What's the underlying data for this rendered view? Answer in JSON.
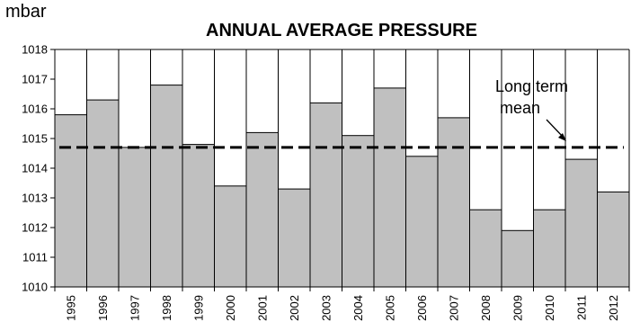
{
  "chart_data": {
    "type": "bar",
    "title": "ANNUAL AVERAGE PRESSURE",
    "unit_label": "mbar",
    "xlabel": "",
    "ylabel": "",
    "categories": [
      "1995",
      "1996",
      "1997",
      "1998",
      "1999",
      "2000",
      "2001",
      "2002",
      "2003",
      "2004",
      "2005",
      "2006",
      "2007",
      "2008",
      "2009",
      "2010",
      "2011",
      "2012"
    ],
    "values": [
      1015.8,
      1016.3,
      1014.7,
      1016.8,
      1014.8,
      1013.4,
      1015.2,
      1013.3,
      1016.2,
      1015.1,
      1016.7,
      1014.4,
      1015.7,
      1012.6,
      1011.9,
      1012.6,
      1014.3,
      1013.2
    ],
    "ylim": [
      1010,
      1018
    ],
    "yticks": [
      1010,
      1011,
      1012,
      1013,
      1014,
      1015,
      1016,
      1017,
      1018
    ],
    "grid": "vertical column separators",
    "bar_color": "#c0c0c0",
    "reference_line": {
      "value": 1014.7,
      "style": "dashed",
      "color": "#000000"
    },
    "annotation": {
      "lines": [
        "Long term",
        "mean"
      ]
    }
  }
}
